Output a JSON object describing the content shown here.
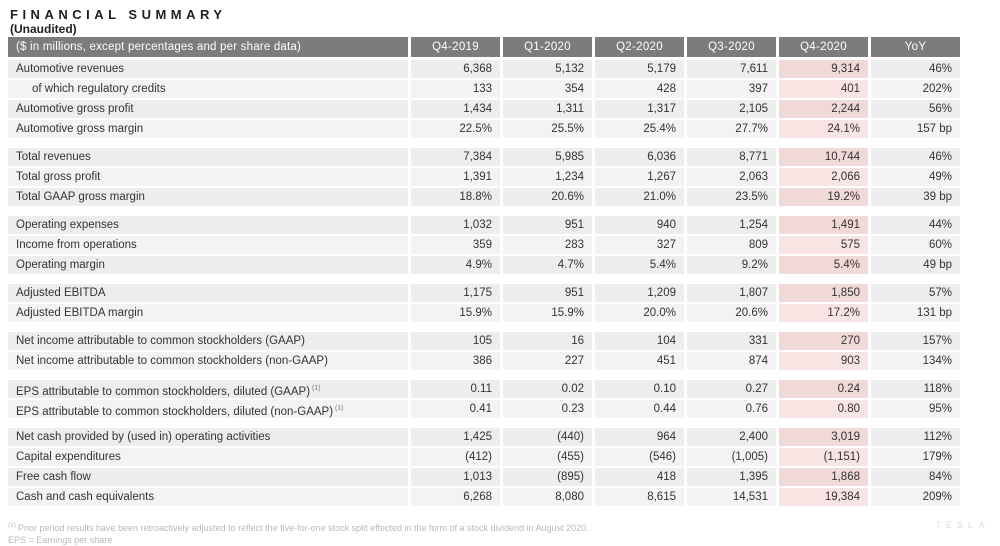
{
  "title": "FINANCIAL SUMMARY",
  "subtitle": "(Unaudited)",
  "watermark": "TESLA",
  "colors": {
    "header_bg": "#7c7c7c",
    "header_text": "#ffffff",
    "cell_bg": "#ededed",
    "cell_bg_alt": "#f3f3f3",
    "highlight_bg": "#f1d9d8",
    "highlight_bg_alt": "#f7e4e3",
    "text": "#333333",
    "footnote_text": "#b9b9b9"
  },
  "table": {
    "header": [
      "($ in millions, except percentages and per share data)",
      "Q4-2019",
      "Q1-2020",
      "Q2-2020",
      "Q3-2020",
      "Q4-2020",
      "YoY"
    ],
    "highlight_column": "Q4-2020",
    "blocks": [
      {
        "rows": [
          {
            "label": "Automotive revenues",
            "indent": false,
            "sup": "",
            "values": [
              "6,368",
              "5,132",
              "5,179",
              "7,611",
              "9,314",
              "46%"
            ]
          },
          {
            "label": "of which regulatory credits",
            "indent": true,
            "sup": "",
            "values": [
              "133",
              "354",
              "428",
              "397",
              "401",
              "202%"
            ]
          },
          {
            "label": "Automotive gross profit",
            "indent": false,
            "sup": "",
            "values": [
              "1,434",
              "1,311",
              "1,317",
              "2,105",
              "2,244",
              "56%"
            ]
          },
          {
            "label": "Automotive gross margin",
            "indent": false,
            "sup": "",
            "values": [
              "22.5%",
              "25.5%",
              "25.4%",
              "27.7%",
              "24.1%",
              "157 bp"
            ]
          }
        ]
      },
      {
        "rows": [
          {
            "label": "Total revenues",
            "indent": false,
            "sup": "",
            "values": [
              "7,384",
              "5,985",
              "6,036",
              "8,771",
              "10,744",
              "46%"
            ]
          },
          {
            "label": "Total gross profit",
            "indent": false,
            "sup": "",
            "values": [
              "1,391",
              "1,234",
              "1,267",
              "2,063",
              "2,066",
              "49%"
            ]
          },
          {
            "label": "Total GAAP gross margin",
            "indent": false,
            "sup": "",
            "values": [
              "18.8%",
              "20.6%",
              "21.0%",
              "23.5%",
              "19.2%",
              "39 bp"
            ]
          }
        ]
      },
      {
        "rows": [
          {
            "label": "Operating expenses",
            "indent": false,
            "sup": "",
            "values": [
              "1,032",
              "951",
              "940",
              "1,254",
              "1,491",
              "44%"
            ]
          },
          {
            "label": "Income from operations",
            "indent": false,
            "sup": "",
            "values": [
              "359",
              "283",
              "327",
              "809",
              "575",
              "60%"
            ]
          },
          {
            "label": "Operating margin",
            "indent": false,
            "sup": "",
            "values": [
              "4.9%",
              "4.7%",
              "5.4%",
              "9.2%",
              "5.4%",
              "49 bp"
            ]
          }
        ]
      },
      {
        "rows": [
          {
            "label": "Adjusted EBITDA",
            "indent": false,
            "sup": "",
            "values": [
              "1,175",
              "951",
              "1,209",
              "1,807",
              "1,850",
              "57%"
            ]
          },
          {
            "label": "Adjusted EBITDA margin",
            "indent": false,
            "sup": "",
            "values": [
              "15.9%",
              "15.9%",
              "20.0%",
              "20.6%",
              "17.2%",
              "131 bp"
            ]
          }
        ]
      },
      {
        "rows": [
          {
            "label": "Net income attributable to common stockholders (GAAP)",
            "indent": false,
            "sup": "",
            "values": [
              "105",
              "16",
              "104",
              "331",
              "270",
              "157%"
            ]
          },
          {
            "label": "Net income attributable to common stockholders (non-GAAP)",
            "indent": false,
            "sup": "",
            "values": [
              "386",
              "227",
              "451",
              "874",
              "903",
              "134%"
            ]
          }
        ]
      },
      {
        "rows": [
          {
            "label": "EPS attributable to common stockholders, diluted (GAAP)",
            "indent": false,
            "sup": "(1)",
            "values": [
              "0.11",
              "0.02",
              "0.10",
              "0.27",
              "0.24",
              "118%"
            ]
          },
          {
            "label": "EPS attributable to common stockholders, diluted (non-GAAP)",
            "indent": false,
            "sup": "(1)",
            "values": [
              "0.41",
              "0.23",
              "0.44",
              "0.76",
              "0.80",
              "95%"
            ]
          }
        ]
      },
      {
        "rows": [
          {
            "label": "Net cash provided by (used in) operating activities",
            "indent": false,
            "sup": "",
            "values": [
              "1,425",
              "(440)",
              "964",
              "2,400",
              "3,019",
              "112%"
            ]
          },
          {
            "label": "Capital expenditures",
            "indent": false,
            "sup": "",
            "values": [
              "(412)",
              "(455)",
              "(546)",
              "(1,005)",
              "(1,151)",
              "179%"
            ]
          },
          {
            "label": "Free cash flow",
            "indent": false,
            "sup": "",
            "values": [
              "1,013",
              "(895)",
              "418",
              "1,395",
              "1,868",
              "84%"
            ]
          },
          {
            "label": "Cash and cash equivalents",
            "indent": false,
            "sup": "",
            "values": [
              "6,268",
              "8,080",
              "8,615",
              "14,531",
              "19,384",
              "209%"
            ]
          }
        ]
      }
    ]
  },
  "footnotes": {
    "marker": "(1)",
    "line1": "Prior period results have been retroactively adjusted to reflect the five-for-one stock split effected in the form of a stock dividend in August 2020.",
    "line2": "EPS = Earnings per share"
  }
}
